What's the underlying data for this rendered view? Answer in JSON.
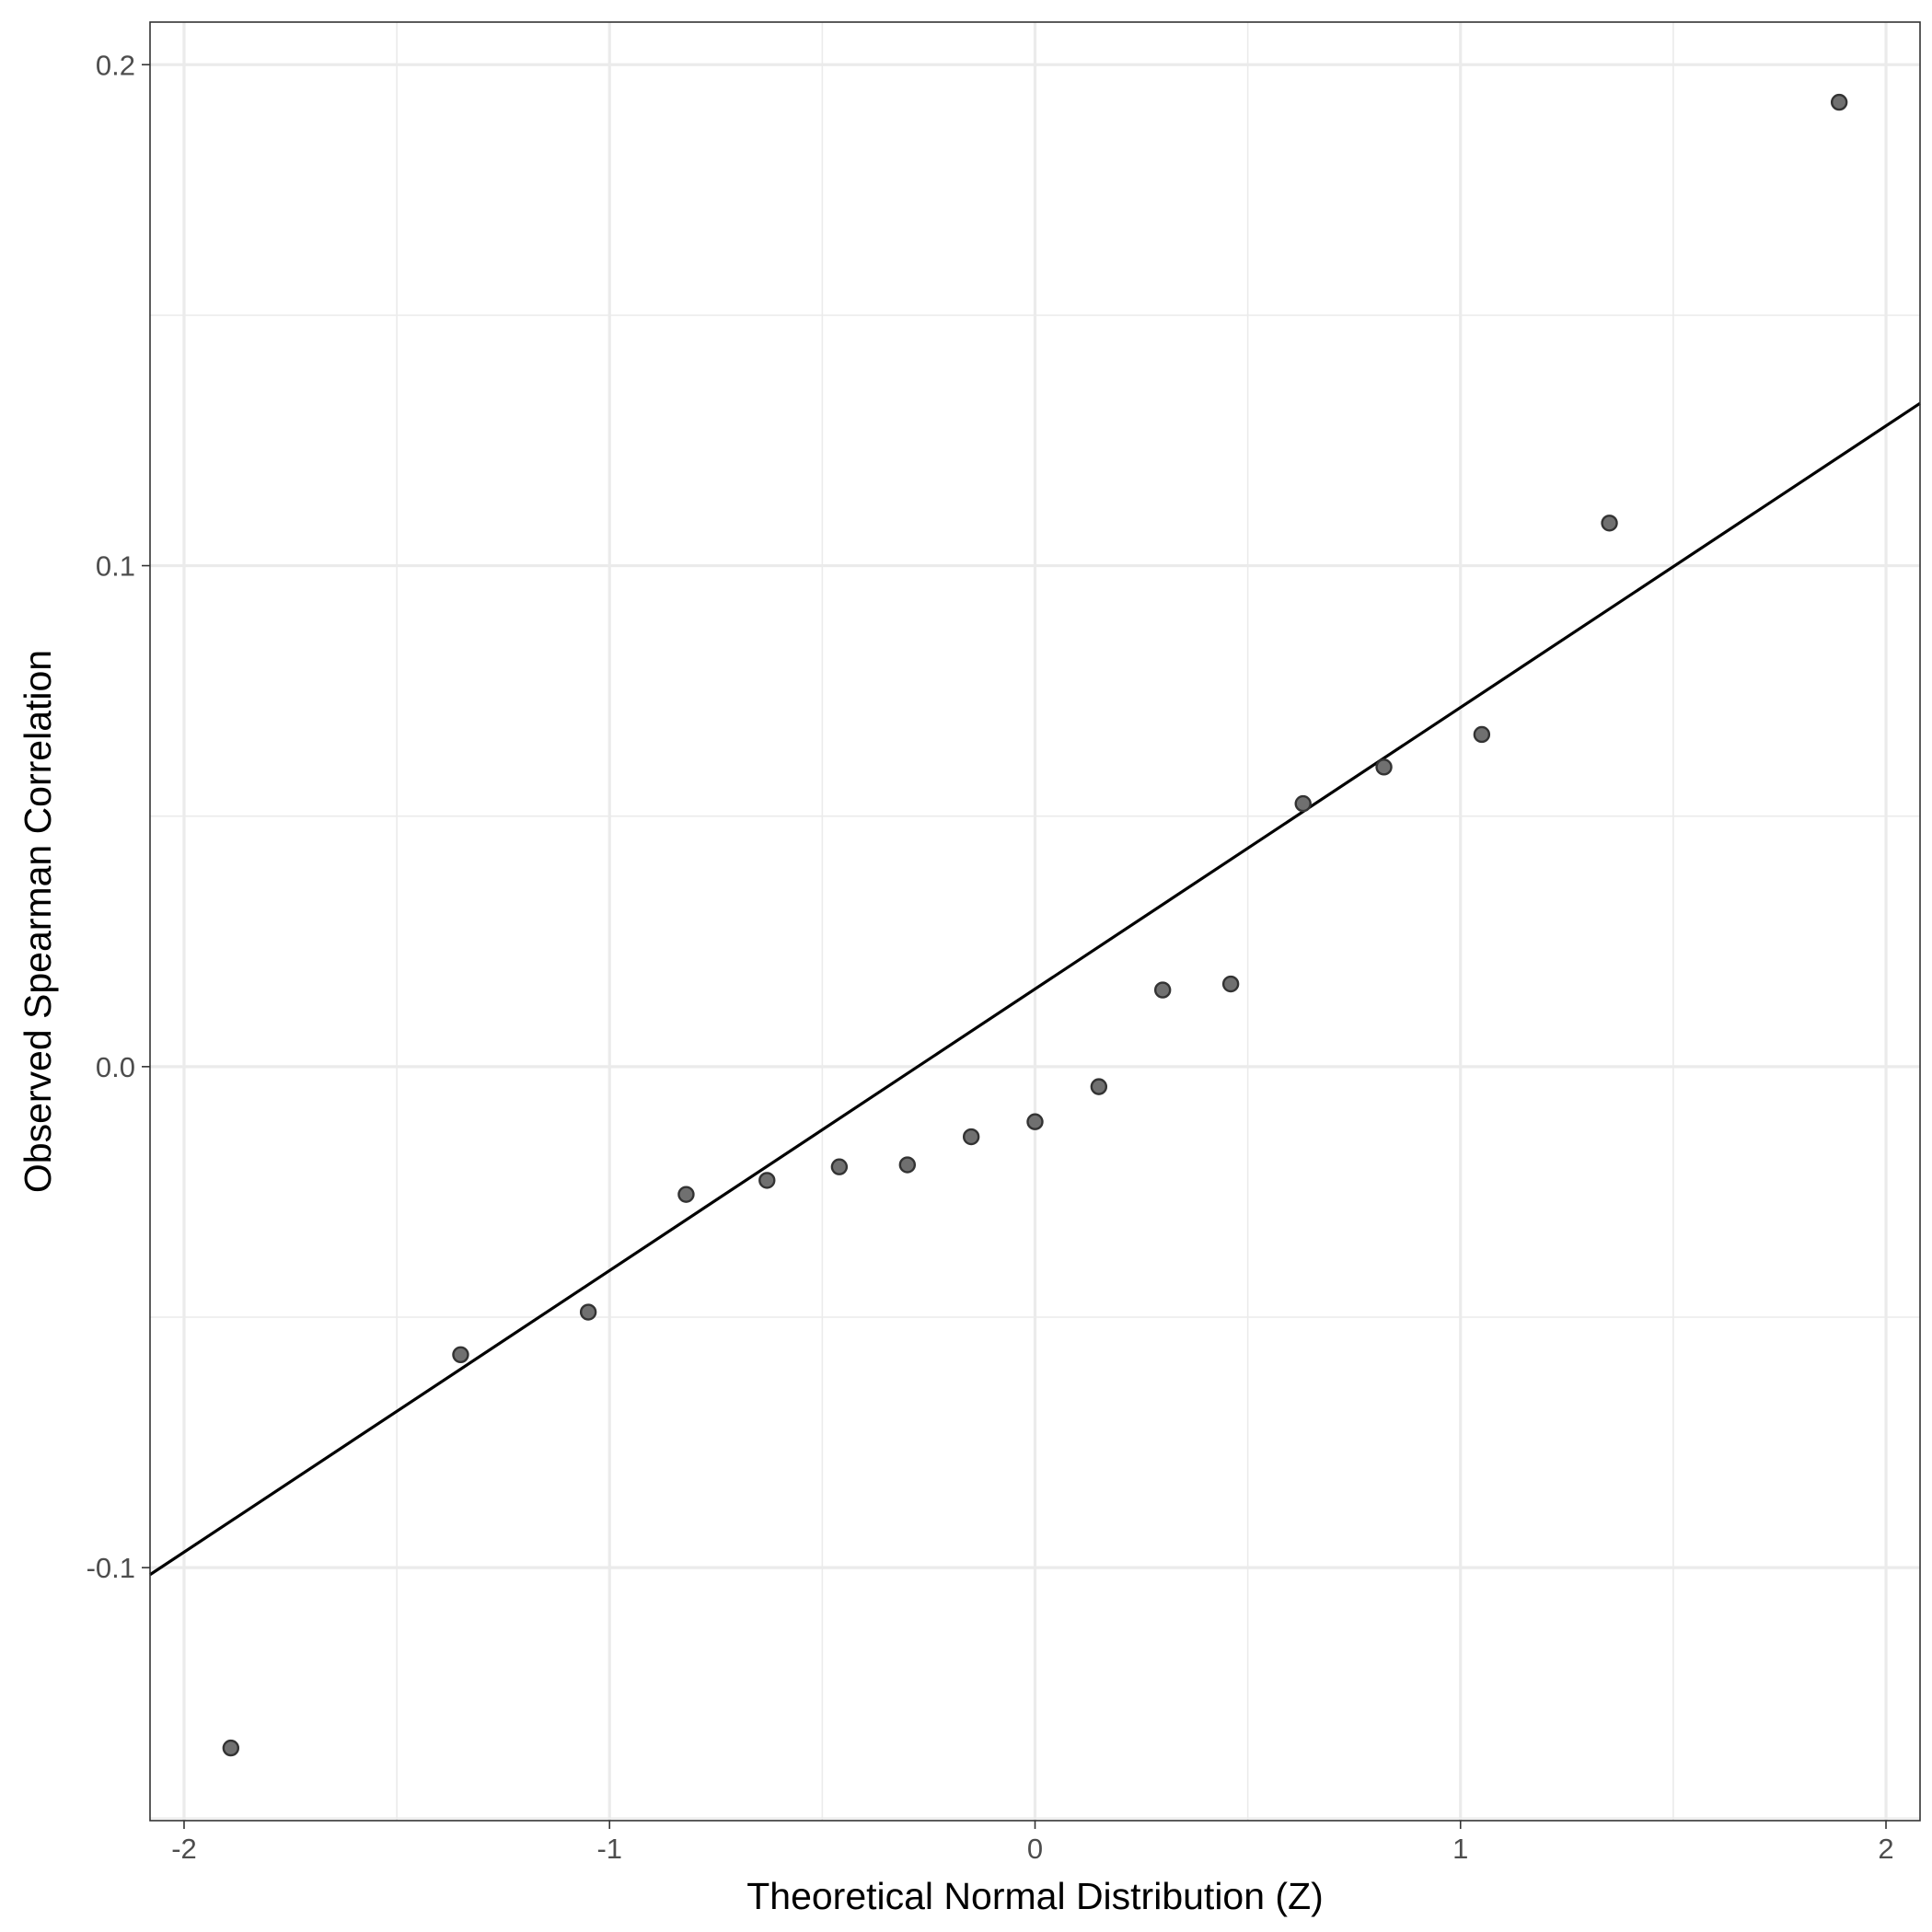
{
  "chart_data": {
    "type": "scatter",
    "title": "",
    "xlabel": "Theoretical Normal Distribution (Z)",
    "ylabel": "Observed Spearman Correlation",
    "xlim": [
      -2.08,
      2.08
    ],
    "ylim": [
      -0.1505,
      0.2085
    ],
    "x_ticks": [
      -2,
      -1,
      0,
      1,
      2
    ],
    "x_tick_labels": [
      "-2",
      "-1",
      "0",
      "1",
      "2"
    ],
    "y_ticks": [
      -0.1,
      0.0,
      0.1,
      0.2
    ],
    "y_tick_labels": [
      "-0.1",
      "0.0",
      "0.1",
      "0.2"
    ],
    "grid": true,
    "colors": {
      "point_fill": "#707070",
      "point_stroke": "#333333",
      "line": "#000000",
      "grid": "#ebebeb",
      "panel_border": "#333333"
    },
    "series": [
      {
        "x": [
          -1.89,
          -1.35,
          -1.05,
          -0.82,
          -0.63,
          -0.46,
          -0.3,
          -0.15,
          0.0,
          0.15,
          0.3,
          0.46,
          0.63,
          0.82,
          1.05,
          1.35,
          1.89
        ],
        "y": [
          -0.136,
          -0.0575,
          -0.049,
          -0.0255,
          -0.0227,
          -0.02,
          -0.0196,
          -0.014,
          -0.011,
          -0.004,
          0.0153,
          0.0165,
          0.0525,
          0.0598,
          0.0663,
          0.1085,
          0.1925
        ]
      }
    ],
    "reference_line": {
      "intercept": 0.0155,
      "slope": 0.0562
    }
  }
}
